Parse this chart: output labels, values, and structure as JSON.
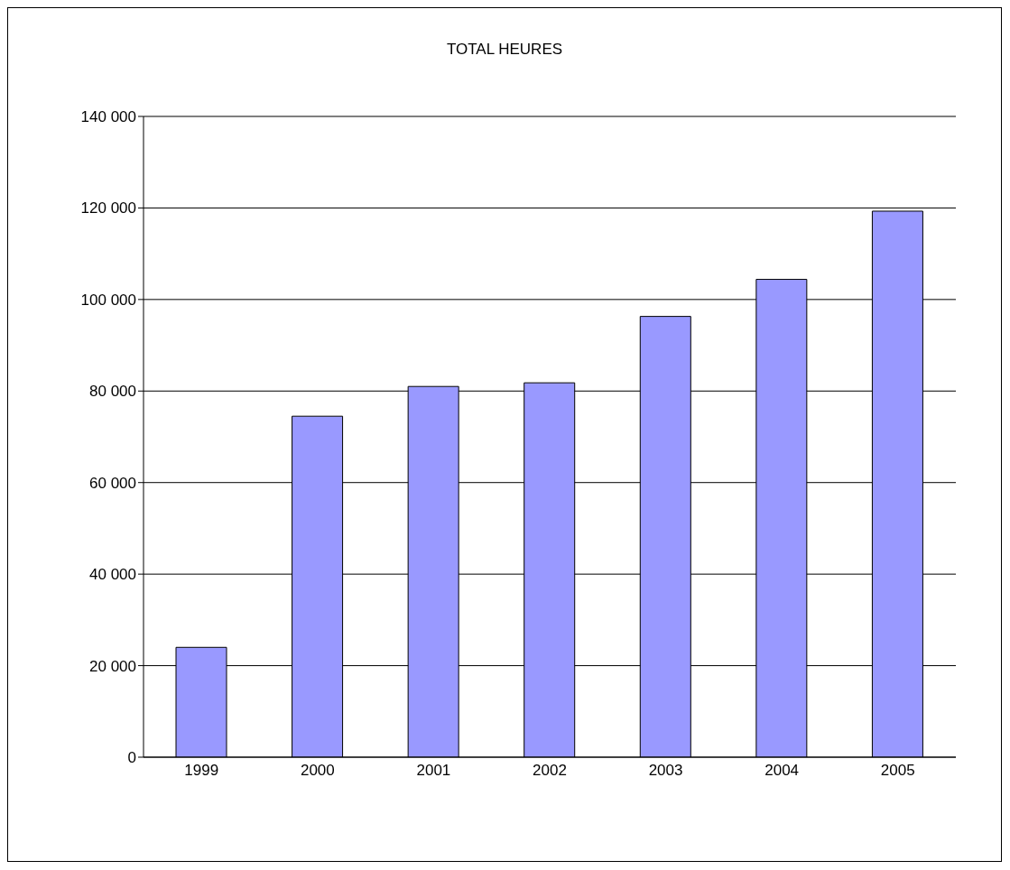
{
  "chart_data": {
    "type": "bar",
    "title": "TOTAL HEURES",
    "categories": [
      "1999",
      "2000",
      "2001",
      "2002",
      "2003",
      "2004",
      "2005"
    ],
    "values": [
      24000,
      74500,
      81000,
      81800,
      96300,
      104400,
      119300
    ],
    "color": "#9999ff",
    "ylim": [
      0,
      140000
    ],
    "yticks": [
      {
        "value": 0,
        "label": "0"
      },
      {
        "value": 20000,
        "label": "20 000"
      },
      {
        "value": 40000,
        "label": "40 000"
      },
      {
        "value": 60000,
        "label": "60 000"
      },
      {
        "value": 80000,
        "label": "80 000"
      },
      {
        "value": 100000,
        "label": "100 000"
      },
      {
        "value": 120000,
        "label": "120 000"
      },
      {
        "value": 140000,
        "label": "140 000"
      }
    ],
    "grid": "y",
    "legend": false
  }
}
